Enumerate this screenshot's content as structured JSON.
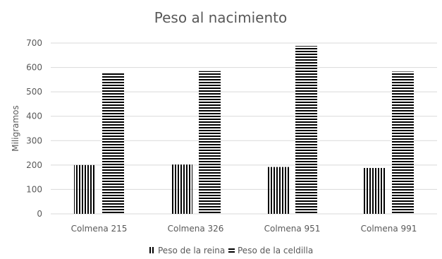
{
  "chart_data": {
    "type": "bar",
    "title": "Peso al nacimiento",
    "xlabel": "",
    "ylabel": "Miligramos",
    "ylim": [
      0,
      700
    ],
    "yticks": [
      0,
      100,
      200,
      300,
      400,
      500,
      600,
      700
    ],
    "grid": true,
    "legend_position": "bottom",
    "categories": [
      "Colmena 215",
      "Colmena 326",
      "Colmena 951",
      "Colmena 991"
    ],
    "series": [
      {
        "name": "Peso de la reina",
        "values": [
          200,
          202,
          192,
          188
        ],
        "pattern": "vertical-lines"
      },
      {
        "name": "Peso de la celdilla",
        "values": [
          578,
          585,
          688,
          583
        ],
        "pattern": "horizontal-lines"
      }
    ]
  },
  "colors": {
    "bars": "#000000",
    "grid": "#d9d9d9",
    "text": "#595959"
  }
}
